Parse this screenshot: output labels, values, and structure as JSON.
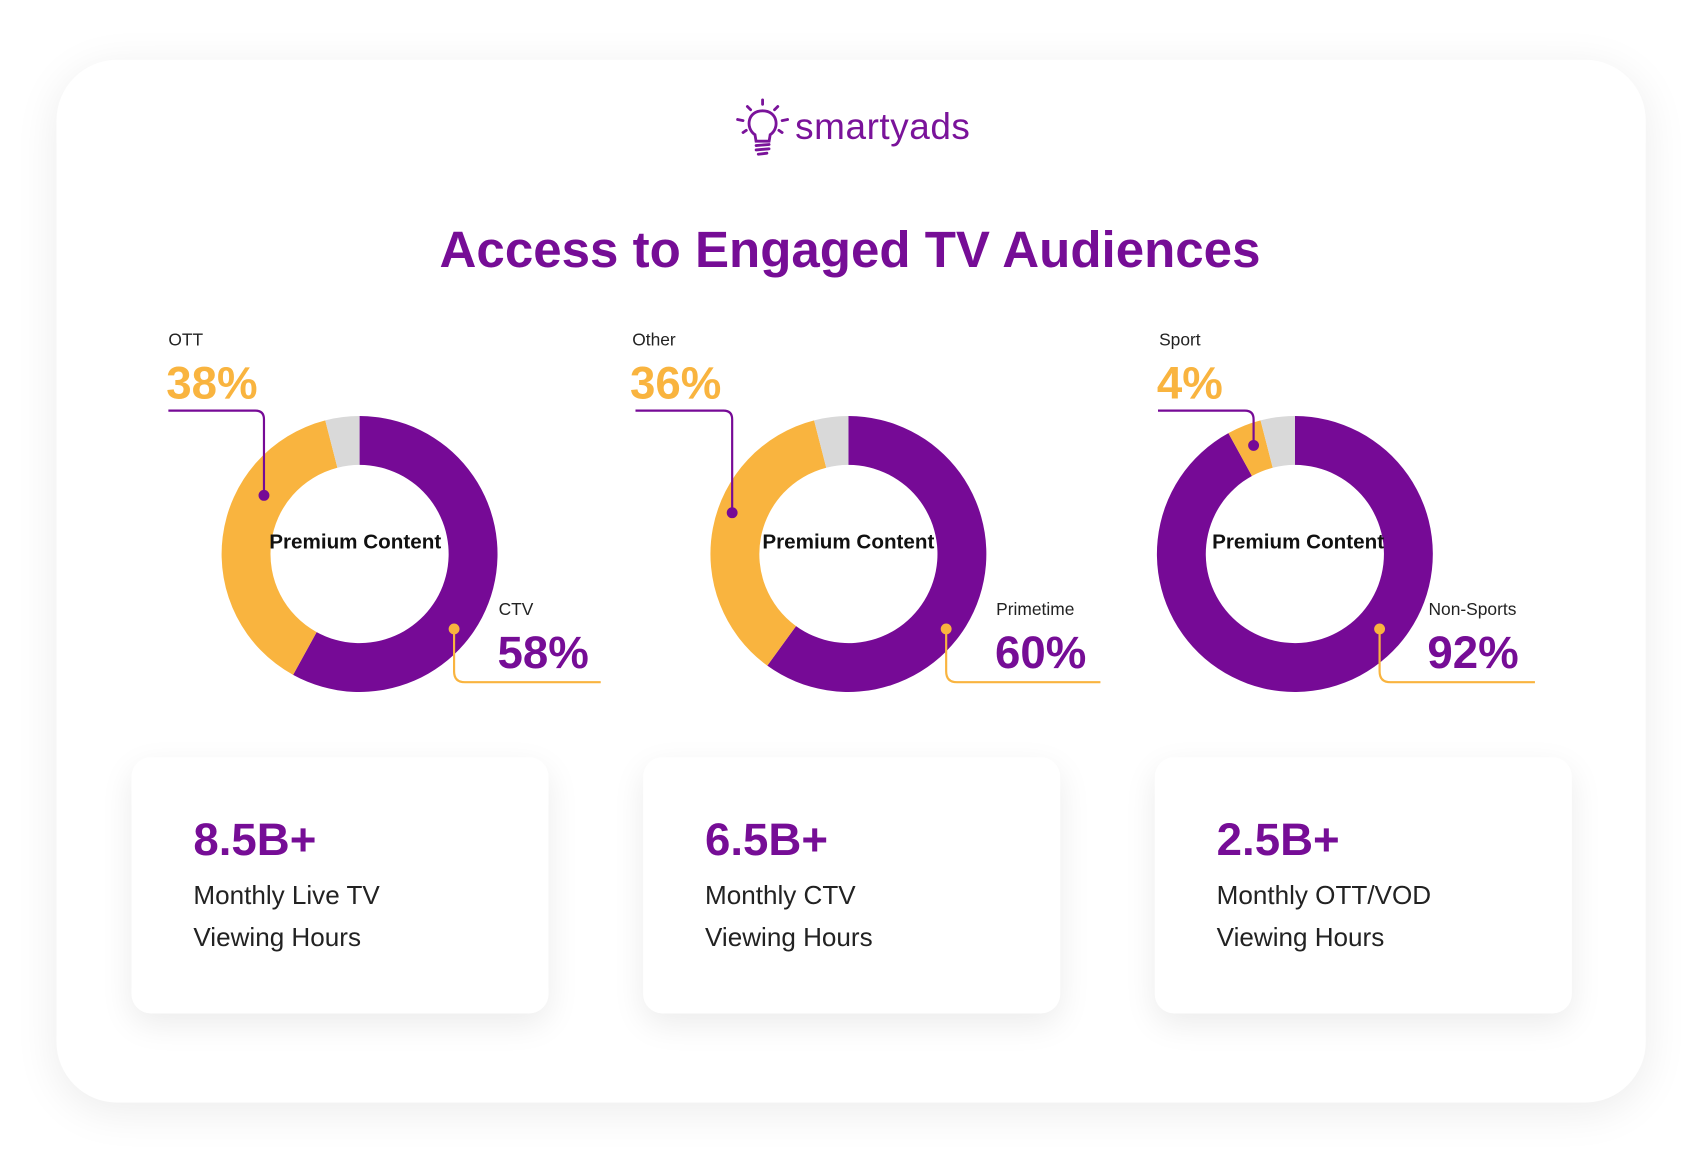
{
  "brand": {
    "name": "smartyads",
    "logo_icon": "lightbulb-icon"
  },
  "title": "Access to Engaged TV Audiences",
  "colors": {
    "purple": "#760a96",
    "yellow": "#f9b43f",
    "gray": "#d9d9d9"
  },
  "chart_data": [
    {
      "type": "pie",
      "center_label": "Premium Content",
      "slices": [
        {
          "label": "CTV",
          "value": 58,
          "display": "58%",
          "color": "#760a96"
        },
        {
          "label": "OTT",
          "value": 38,
          "display": "38%",
          "color": "#f9b43f"
        },
        {
          "label": "",
          "value": 4,
          "color": "#d9d9d9"
        }
      ]
    },
    {
      "type": "pie",
      "center_label": "Premium Content",
      "slices": [
        {
          "label": "Primetime",
          "value": 60,
          "display": "60%",
          "color": "#760a96"
        },
        {
          "label": "Other",
          "value": 36,
          "display": "36%",
          "color": "#f9b43f"
        },
        {
          "label": "",
          "value": 4,
          "color": "#d9d9d9"
        }
      ]
    },
    {
      "type": "pie",
      "center_label": "Premium Content",
      "slices": [
        {
          "label": "Non-Sports",
          "value": 92,
          "display": "92%",
          "color": "#760a96"
        },
        {
          "label": "Sport",
          "value": 4,
          "display": "4%",
          "color": "#f9b43f"
        },
        {
          "label": "",
          "value": 4,
          "color": "#d9d9d9"
        }
      ]
    }
  ],
  "stats": [
    {
      "value": "8.5B+",
      "line1": "Monthly Live TV",
      "line2": "Viewing Hours"
    },
    {
      "value": "6.5B+",
      "line1": "Monthly CTV",
      "line2": "Viewing Hours"
    },
    {
      "value": "2.5B+",
      "line1": "Monthly OTT/VOD",
      "line2": "Viewing Hours"
    }
  ]
}
